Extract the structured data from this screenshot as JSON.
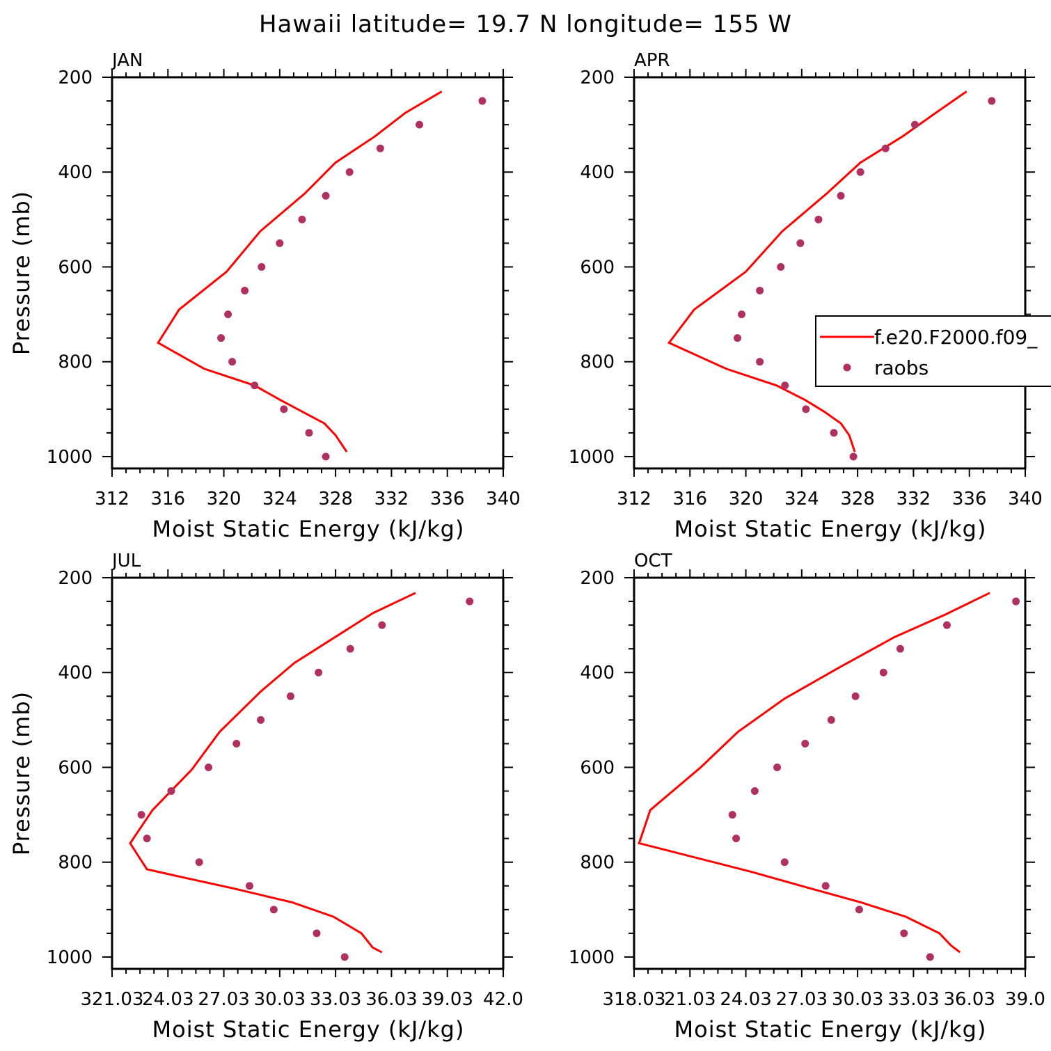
{
  "figure": {
    "title": "Hawaii  latitude= 19.7 N longitude= 155 W"
  },
  "legend": {
    "entries": [
      "f.e20.F2000.f09_",
      "raobs"
    ]
  },
  "colors": {
    "model_line": "#ff0000",
    "obs_dots": "#b03060"
  },
  "chart_data": [
    {
      "type": "line",
      "panel": "JAN",
      "xlabel": "Moist Static Energy (kJ/kg)",
      "ylabel": "Pressure (mb)",
      "xlim": [
        312,
        340
      ],
      "ylim": [
        1025,
        200
      ],
      "x_ticks": [
        "312",
        "316",
        "320",
        "324",
        "328",
        "332",
        "336",
        "340"
      ],
      "y_ticks": [
        "200",
        "400",
        "600",
        "800",
        "1000"
      ],
      "series": [
        {
          "name": "f.e20.F2000.f09_",
          "kind": "line",
          "x": [
            335.6,
            333.0,
            330.8,
            328.0,
            325.8,
            322.6,
            320.2,
            316.8,
            315.3,
            318.6,
            322.2,
            324.0,
            325.6,
            327.2,
            328.0,
            328.8
          ],
          "y": [
            230,
            275,
            325,
            380,
            445,
            525,
            610,
            690,
            760,
            815,
            850,
            880,
            905,
            930,
            955,
            990
          ]
        },
        {
          "name": "raobs",
          "kind": "dots",
          "x": [
            338.5,
            334.0,
            331.2,
            329.0,
            327.3,
            325.6,
            324.0,
            322.7,
            321.5,
            320.3,
            319.8,
            320.6,
            322.2,
            324.3,
            326.1,
            327.3
          ],
          "y": [
            250,
            300,
            350,
            400,
            450,
            500,
            550,
            600,
            650,
            700,
            750,
            800,
            850,
            900,
            950,
            1000
          ]
        }
      ]
    },
    {
      "type": "line",
      "panel": "APR",
      "xlabel": "Moist Static Energy (kJ/kg)",
      "ylabel": "",
      "xlim": [
        312,
        340
      ],
      "ylim": [
        1025,
        200
      ],
      "x_ticks": [
        "312",
        "316",
        "320",
        "324",
        "328",
        "332",
        "336",
        "340"
      ],
      "y_ticks": [
        "200",
        "400",
        "600",
        "800",
        "1000"
      ],
      "legend": "right",
      "series": [
        {
          "name": "f.e20.F2000.f09_",
          "kind": "line",
          "x": [
            335.8,
            333.6,
            331.2,
            328.2,
            325.8,
            322.6,
            320.0,
            316.3,
            314.5,
            318.6,
            322.2,
            324.2,
            325.6,
            326.8,
            327.4,
            327.8
          ],
          "y": [
            230,
            275,
            325,
            380,
            445,
            525,
            610,
            690,
            760,
            815,
            850,
            880,
            905,
            930,
            955,
            990
          ]
        },
        {
          "name": "raobs",
          "kind": "dots",
          "x": [
            337.6,
            332.1,
            330.0,
            328.2,
            326.8,
            325.2,
            323.9,
            322.5,
            321.0,
            319.7,
            319.4,
            321.0,
            322.8,
            324.3,
            326.3,
            327.7
          ],
          "y": [
            250,
            300,
            350,
            400,
            450,
            500,
            550,
            600,
            650,
            700,
            750,
            800,
            850,
            900,
            950,
            1000
          ]
        }
      ]
    },
    {
      "type": "line",
      "panel": "JUL",
      "xlabel": "Moist Static Energy (kJ/kg)",
      "ylabel": "Pressure (mb)",
      "xlim": [
        321.03,
        342.0
      ],
      "ylim": [
        1025,
        200
      ],
      "x_ticks": [
        "321.03",
        "24.03",
        "27.03",
        "30.03",
        "33.03",
        "36.03",
        "39.03",
        "42.0"
      ],
      "y_ticks": [
        "200",
        "400",
        "600",
        "800",
        "1000"
      ],
      "series": [
        {
          "name": "f.e20.F2000.f09_",
          "kind": "line",
          "x": [
            337.3,
            335.0,
            333.2,
            330.8,
            329.0,
            326.8,
            325.3,
            323.2,
            322.0,
            322.9,
            324.6,
            327.5,
            330.7,
            332.9,
            334.4,
            335.0,
            335.5
          ],
          "y": [
            232,
            275,
            320,
            380,
            440,
            525,
            605,
            690,
            760,
            815,
            830,
            855,
            885,
            915,
            950,
            980,
            990
          ]
        },
        {
          "name": "raobs",
          "kind": "dots",
          "x": [
            340.2,
            335.5,
            333.8,
            332.1,
            330.6,
            329.0,
            327.7,
            326.2,
            324.2,
            322.6,
            322.9,
            325.7,
            328.4,
            329.7,
            332.0,
            333.5
          ],
          "y": [
            250,
            300,
            350,
            400,
            450,
            500,
            550,
            600,
            650,
            700,
            750,
            800,
            850,
            900,
            950,
            1000
          ]
        }
      ]
    },
    {
      "type": "line",
      "panel": "OCT",
      "xlabel": "Moist Static Energy (kJ/kg)",
      "ylabel": "",
      "xlim": [
        318.03,
        339.0
      ],
      "ylim": [
        1025,
        200
      ],
      "x_ticks": [
        "318.03",
        "21.03",
        "24.03",
        "27.03",
        "30.03",
        "33.03",
        "36.03",
        "39.0"
      ],
      "y_ticks": [
        "200",
        "400",
        "600",
        "800",
        "1000"
      ],
      "series": [
        {
          "name": "f.e20.F2000.f09_",
          "kind": "line",
          "x": [
            337.1,
            334.7,
            332.0,
            329.0,
            326.1,
            323.6,
            321.6,
            318.9,
            318.3,
            324.3,
            327.0,
            330.2,
            332.6,
            334.4,
            335.0,
            335.5
          ],
          "y": [
            232,
            278,
            325,
            390,
            455,
            525,
            600,
            690,
            760,
            820,
            850,
            885,
            915,
            950,
            975,
            990
          ]
        },
        {
          "name": "raobs",
          "kind": "dots",
          "x": [
            338.5,
            334.8,
            332.3,
            331.4,
            329.9,
            328.6,
            327.2,
            325.7,
            324.5,
            323.3,
            323.5,
            326.1,
            328.3,
            330.1,
            332.5,
            333.9
          ],
          "y": [
            250,
            300,
            350,
            400,
            450,
            500,
            550,
            600,
            650,
            700,
            750,
            800,
            850,
            900,
            950,
            1000
          ]
        }
      ]
    }
  ]
}
